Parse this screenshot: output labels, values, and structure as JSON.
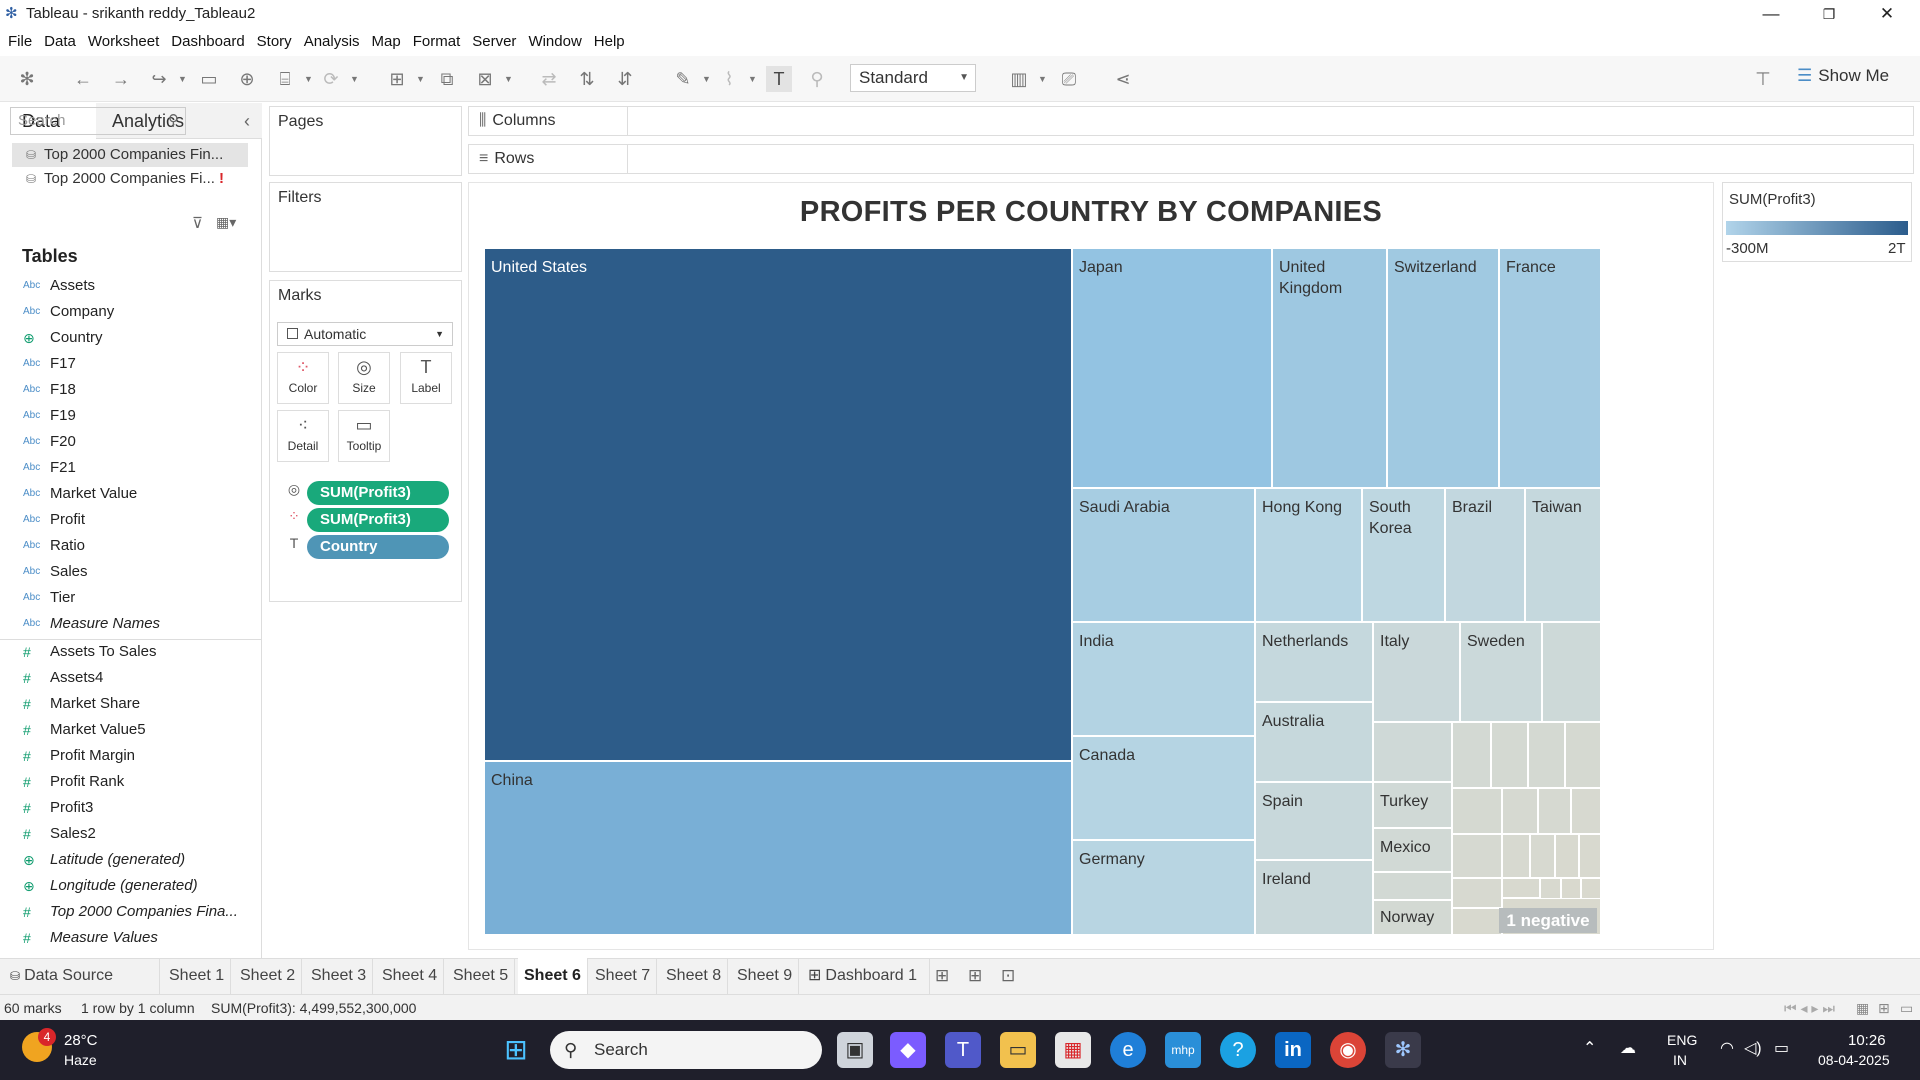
{
  "window": {
    "title": "Tableau - srikanth reddy_Tableau2",
    "minimize": "—",
    "restore": "❐",
    "close": "✕"
  },
  "menu": [
    "File",
    "Data",
    "Worksheet",
    "Dashboard",
    "Story",
    "Analysis",
    "Map",
    "Format",
    "Server",
    "Window",
    "Help"
  ],
  "toolbar": {
    "fit_value": "Standard",
    "show_me_label": "Show Me"
  },
  "data_pane": {
    "tab_data": "Data",
    "tab_analytics": "Analytics",
    "collapse": "‹",
    "sources": [
      {
        "label": "Top 2000 Companies Fin...",
        "warning": ""
      },
      {
        "label": "Top 2000 Companies Fi...",
        "warning": "!"
      }
    ],
    "search_placeholder": "Search",
    "tables_heading": "Tables",
    "dimensions": [
      {
        "type": "Abc",
        "name": "Assets"
      },
      {
        "type": "Abc",
        "name": "Company"
      },
      {
        "type": "geo",
        "name": "Country"
      },
      {
        "type": "Abc",
        "name": "F17"
      },
      {
        "type": "Abc",
        "name": "F18"
      },
      {
        "type": "Abc",
        "name": "F19"
      },
      {
        "type": "Abc",
        "name": "F20"
      },
      {
        "type": "Abc",
        "name": "F21"
      },
      {
        "type": "Abc",
        "name": "Market Value"
      },
      {
        "type": "Abc",
        "name": "Profit"
      },
      {
        "type": "Abc",
        "name": "Ratio"
      },
      {
        "type": "Abc",
        "name": "Sales"
      },
      {
        "type": "Abc",
        "name": "Tier"
      },
      {
        "type": "Abc",
        "name": "Measure Names"
      }
    ],
    "measures": [
      {
        "type": "#",
        "name": "Assets To Sales"
      },
      {
        "type": "#",
        "name": "Assets4"
      },
      {
        "type": "#",
        "name": "Market Share"
      },
      {
        "type": "#",
        "name": "Market Value5"
      },
      {
        "type": "#",
        "name": "Profit Margin"
      },
      {
        "type": "#",
        "name": "Profit Rank"
      },
      {
        "type": "#",
        "name": "Profit3"
      },
      {
        "type": "#",
        "name": "Sales2"
      },
      {
        "type": "geo",
        "name": "Latitude (generated)"
      },
      {
        "type": "geo",
        "name": "Longitude (generated)"
      },
      {
        "type": "#",
        "name": "Top 2000 Companies Fina..."
      },
      {
        "type": "#",
        "name": "Measure Values"
      }
    ]
  },
  "shelves": {
    "pages": "Pages",
    "filters": "Filters",
    "marks": "Marks",
    "mark_type": "Automatic",
    "columns": "Columns",
    "rows": "Rows",
    "mark_buttons": [
      "Color",
      "Size",
      "Label",
      "Detail",
      "Tooltip"
    ],
    "pills": [
      "SUM(Profit3)",
      "SUM(Profit3)",
      "Country"
    ]
  },
  "chart": {
    "title": "PROFITS PER COUNTRY BY COMPANIES",
    "negative_badge": "1 negative"
  },
  "chart_data": {
    "type": "treemap",
    "title": "PROFITS PER COUNTRY BY COMPANIES",
    "measure": "SUM(Profit3)",
    "color_range": [
      "-300M",
      "2T"
    ],
    "labeled_countries": [
      "United States",
      "China",
      "Japan",
      "United Kingdom",
      "Switzerland",
      "France",
      "Saudi Arabia",
      "Hong Kong",
      "South Korea",
      "Brazil",
      "Taiwan",
      "India",
      "Netherlands",
      "Italy",
      "Sweden",
      "Australia",
      "Canada",
      "Spain",
      "Turkey",
      "Germany",
      "Mexico",
      "Ireland",
      "Norway"
    ],
    "marks": 60,
    "negative_marks": 1
  },
  "legend": {
    "title": "SUM(Profit3)",
    "min_label": "-300M",
    "max_label": "2T"
  },
  "sheet_tabs": [
    "Data Source",
    "Sheet 1",
    "Sheet 2",
    "Sheet 3",
    "Sheet 4",
    "Sheet 5",
    "Sheet 6",
    "Sheet 7",
    "Sheet 8",
    "Sheet 9",
    "Dashboard 1"
  ],
  "active_sheet": "Sheet 6",
  "status": {
    "marks": "60 marks",
    "rows_cols": "1 row by 1 column",
    "sum": "SUM(Profit3): 4,499,552,300,000"
  },
  "taskbar": {
    "weather_temp": "28°C",
    "weather_desc": "Haze",
    "weather_badge": "4",
    "search_label": "Search",
    "lang": "ENG",
    "region": "IN",
    "time": "10:26",
    "date": "08-04-2025"
  }
}
